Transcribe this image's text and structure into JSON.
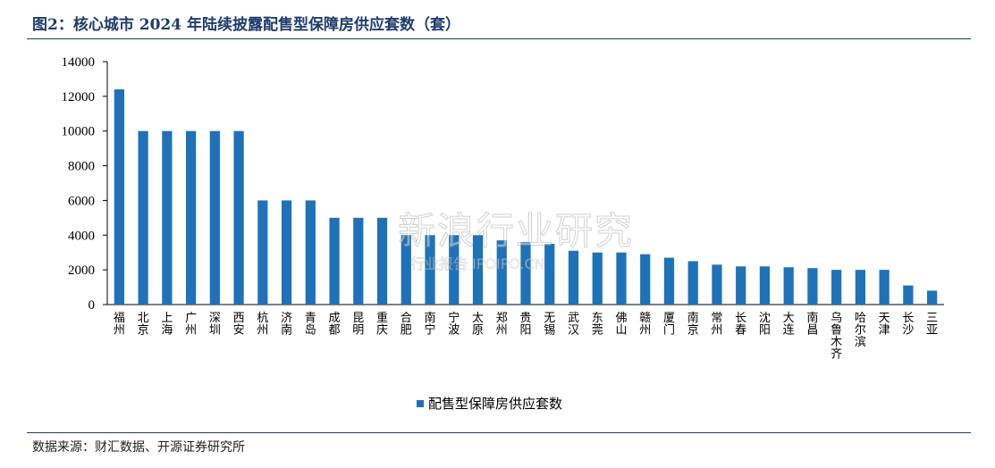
{
  "title": "图2：核心城市 2024 年陆续披露配售型保障房供应套数（套）",
  "source": "数据来源：财汇数据、开源证券研究所",
  "watermark": {
    "main": "新浪行业研究",
    "sub": "行业报告 IPOIPO.CN"
  },
  "colors": {
    "bar": "#1f72b8",
    "axis": "#000000",
    "rule": "#1f3d6b"
  },
  "chart_data": {
    "type": "bar",
    "categories": [
      "福州",
      "北京",
      "上海",
      "广州",
      "深圳",
      "西安",
      "杭州",
      "济南",
      "青岛",
      "成都",
      "昆明",
      "重庆",
      "合肥",
      "南宁",
      "宁波",
      "太原",
      "郑州",
      "贵阳",
      "无锡",
      "武汉",
      "东莞",
      "佛山",
      "赣州",
      "厦门",
      "南京",
      "常州",
      "长春",
      "沈阳",
      "大连",
      "南昌",
      "乌鲁木齐",
      "哈尔滨",
      "天津",
      "长沙",
      "三亚"
    ],
    "series": [
      {
        "name": "配售型保障房供应套数",
        "values": [
          12400,
          10000,
          10000,
          10000,
          10000,
          10000,
          6000,
          6000,
          6000,
          5000,
          5000,
          5000,
          4000,
          4000,
          4000,
          4000,
          3700,
          3600,
          3500,
          3100,
          3000,
          3000,
          2900,
          2700,
          2500,
          2300,
          2200,
          2200,
          2150,
          2100,
          2000,
          2000,
          2000,
          1100,
          800
        ]
      }
    ],
    "yticks": [
      0,
      2000,
      4000,
      6000,
      8000,
      10000,
      12000,
      14000
    ],
    "ylim": [
      0,
      14000
    ],
    "grid": false,
    "legend": "bottom-center",
    "xlabel": "",
    "ylabel": ""
  }
}
